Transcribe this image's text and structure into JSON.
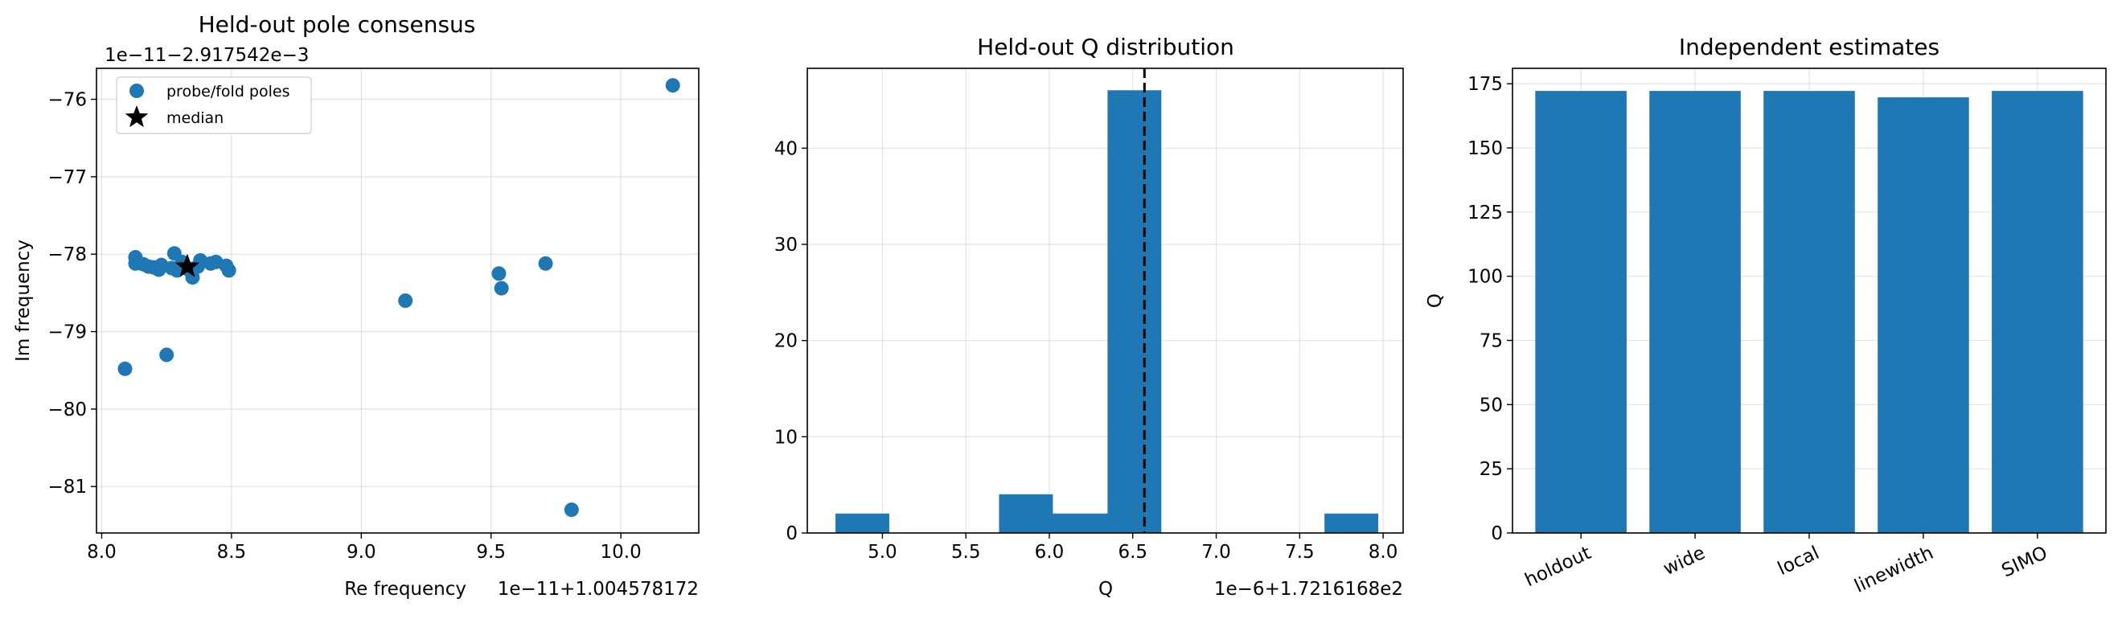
{
  "colors": {
    "bar": "#1f77b4",
    "point": "#1f77b4",
    "marker": "#000000",
    "grid": "#b0b0b0",
    "median_line": "#000000"
  },
  "chart_data": [
    {
      "type": "scatter",
      "title": "Held-out pole consensus",
      "xlabel": "Re frequency",
      "ylabel": "Im frequency",
      "x_offset_text": "1e−11+1.004578172",
      "y_offset_text": "1e−11−2.917542e−3",
      "xlim": [
        7.98,
        10.3
      ],
      "ylim": [
        -81.6,
        -75.6
      ],
      "xticks": [
        8.0,
        8.5,
        9.0,
        9.5,
        10.0
      ],
      "xtick_labels": [
        "8.0",
        "8.5",
        "9.0",
        "9.5",
        "10.0"
      ],
      "yticks": [
        -81,
        -80,
        -79,
        -78,
        -77,
        -76
      ],
      "ytick_labels": [
        "−81",
        "−80",
        "−79",
        "−78",
        "−77",
        "−76"
      ],
      "grid": true,
      "legend_position": "upper-left",
      "series": [
        {
          "name": "probe/fold poles",
          "marker": "circle",
          "points": [
            [
              8.09,
              -79.48
            ],
            [
              8.13,
              -78.12
            ],
            [
              8.13,
              -78.04
            ],
            [
              8.16,
              -78.13
            ],
            [
              8.18,
              -78.16
            ],
            [
              8.2,
              -78.17
            ],
            [
              8.22,
              -78.2
            ],
            [
              8.23,
              -78.14
            ],
            [
              8.25,
              -79.3
            ],
            [
              8.27,
              -78.18
            ],
            [
              8.28,
              -77.99
            ],
            [
              8.29,
              -78.21
            ],
            [
              8.31,
              -78.1
            ],
            [
              8.33,
              -78.19
            ],
            [
              8.35,
              -78.3
            ],
            [
              8.37,
              -78.16
            ],
            [
              8.38,
              -78.08
            ],
            [
              8.42,
              -78.12
            ],
            [
              8.44,
              -78.1
            ],
            [
              8.48,
              -78.15
            ],
            [
              8.49,
              -78.21
            ],
            [
              9.17,
              -78.6
            ],
            [
              9.53,
              -78.25
            ],
            [
              9.54,
              -78.44
            ],
            [
              9.71,
              -78.12
            ],
            [
              9.81,
              -81.3
            ],
            [
              10.2,
              -75.82
            ]
          ]
        },
        {
          "name": "median",
          "marker": "star",
          "points": [
            [
              8.33,
              -78.16
            ]
          ]
        }
      ]
    },
    {
      "type": "bar",
      "title": "Held-out Q distribution",
      "xlabel": "Q",
      "x_offset_text": "1e−6+1.7216168e2",
      "xlim": [
        4.55,
        8.12
      ],
      "ylim": [
        0,
        48.3
      ],
      "xticks": [
        5.0,
        5.5,
        6.0,
        6.5,
        7.0,
        7.5,
        8.0
      ],
      "xtick_labels": [
        "5.0",
        "5.5",
        "6.0",
        "6.5",
        "7.0",
        "7.5",
        "8.0"
      ],
      "yticks": [
        0,
        10,
        20,
        30,
        40
      ],
      "ytick_labels": [
        "0",
        "10",
        "20",
        "30",
        "40"
      ],
      "grid": true,
      "bins": [
        [
          4.72,
          5.04,
          2
        ],
        [
          5.04,
          5.37,
          0
        ],
        [
          5.37,
          5.7,
          0
        ],
        [
          5.7,
          6.02,
          4
        ],
        [
          6.02,
          6.35,
          2
        ],
        [
          6.35,
          6.67,
          46
        ],
        [
          6.67,
          7.0,
          0
        ],
        [
          7.0,
          7.32,
          0
        ],
        [
          7.32,
          7.65,
          0
        ],
        [
          7.65,
          7.97,
          2
        ]
      ],
      "median_line_x": 6.57
    },
    {
      "type": "bar",
      "title": "Independent estimates",
      "ylabel": "Q",
      "categories": [
        "holdout",
        "wide",
        "local",
        "linewidth",
        "SIMO"
      ],
      "values": [
        172.2,
        172.2,
        172.2,
        169.7,
        172.2
      ],
      "ylim": [
        0,
        181
      ],
      "yticks": [
        0,
        25,
        50,
        75,
        100,
        125,
        150,
        175
      ],
      "ytick_labels": [
        "0",
        "25",
        "50",
        "75",
        "100",
        "125",
        "150",
        "175"
      ],
      "grid": true,
      "xtick_rotation_deg": 25
    }
  ]
}
